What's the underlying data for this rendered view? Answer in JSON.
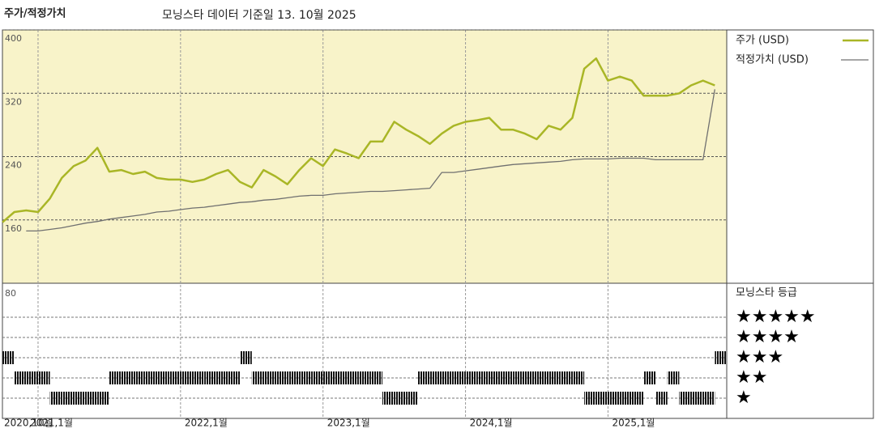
{
  "chart_data": [
    {
      "type": "line",
      "title": "주가/적정가치",
      "subtitle": "모닝스타 데이터 기준일 13. 10월 2025",
      "x": [
        "2020-10",
        "2020-11",
        "2020-12",
        "2021-01",
        "2021-02",
        "2021-03",
        "2021-04",
        "2021-05",
        "2021-06",
        "2021-07",
        "2021-08",
        "2021-09",
        "2021-10",
        "2021-11",
        "2021-12",
        "2022-01",
        "2022-02",
        "2022-03",
        "2022-04",
        "2022-05",
        "2022-06",
        "2022-07",
        "2022-08",
        "2022-09",
        "2022-10",
        "2022-11",
        "2022-12",
        "2023-01",
        "2023-02",
        "2023-03",
        "2023-04",
        "2023-05",
        "2023-06",
        "2023-07",
        "2023-08",
        "2023-09",
        "2023-10",
        "2023-11",
        "2023-12",
        "2024-01",
        "2024-02",
        "2024-03",
        "2024-04",
        "2024-05",
        "2024-06",
        "2024-07",
        "2024-08",
        "2024-09",
        "2024-10",
        "2024-11",
        "2024-12",
        "2025-01",
        "2025-02",
        "2025-03",
        "2025-04",
        "2025-05",
        "2025-06",
        "2025-07",
        "2025-08",
        "2025-09",
        "2025-10"
      ],
      "series": [
        {
          "name": "주가 (USD)",
          "color": "#a9b626",
          "values": [
            157,
            170,
            172,
            170,
            187,
            213,
            228,
            235,
            251,
            221,
            223,
            218,
            221,
            213,
            211,
            211,
            208,
            211,
            218,
            223,
            208,
            201,
            223,
            215,
            205,
            223,
            238,
            228,
            249,
            244,
            238,
            259,
            259,
            284,
            274,
            266,
            256,
            269,
            279,
            284,
            286,
            289,
            274,
            274,
            269,
            262,
            279,
            274,
            289,
            351,
            364,
            336,
            341,
            336,
            317,
            317,
            317,
            320,
            330,
            336,
            330
          ]
        },
        {
          "name": "적정가치 (USD)",
          "color": "#707070",
          "values": [
            null,
            null,
            146,
            146,
            148,
            150,
            153,
            156,
            158,
            161,
            163,
            165,
            167,
            170,
            171,
            173,
            175,
            176,
            178,
            180,
            182,
            183,
            185,
            186,
            188,
            190,
            191,
            191,
            193,
            194,
            195,
            196,
            196,
            197,
            198,
            199,
            200,
            220,
            220,
            222,
            224,
            226,
            228,
            230,
            231,
            232,
            233,
            234,
            236,
            237,
            237,
            237,
            238,
            238,
            238,
            236,
            236,
            236,
            236,
            236,
            325
          ]
        }
      ],
      "xlim": [
        "2020-10",
        "2025-11"
      ],
      "xticks": [
        {
          "value": "2020-10",
          "label": "2020,10월"
        },
        {
          "value": "2021-01",
          "label": "2021,1월"
        },
        {
          "value": "2022-01",
          "label": "2022,1월"
        },
        {
          "value": "2023-01",
          "label": "2023,1월"
        },
        {
          "value": "2024-01",
          "label": "2024,1월"
        },
        {
          "value": "2025-01",
          "label": "2025,1월"
        }
      ],
      "ylim": [
        80,
        400
      ],
      "yticks": [
        160,
        240,
        320,
        400
      ],
      "grid": true,
      "legend": "right"
    },
    {
      "type": "rating",
      "title": "모닝스타 등급",
      "corner_label": "80",
      "x": [
        "2020-10",
        "2020-11",
        "2020-12",
        "2021-01",
        "2021-02",
        "2021-03",
        "2021-04",
        "2021-05",
        "2021-06",
        "2021-07",
        "2021-08",
        "2021-09",
        "2021-10",
        "2021-11",
        "2021-12",
        "2022-01",
        "2022-02",
        "2022-03",
        "2022-04",
        "2022-05",
        "2022-06",
        "2022-07",
        "2022-08",
        "2022-09",
        "2022-10",
        "2022-11",
        "2022-12",
        "2023-01",
        "2023-02",
        "2023-03",
        "2023-04",
        "2023-05",
        "2023-06",
        "2023-07",
        "2023-08",
        "2023-09",
        "2023-10",
        "2023-11",
        "2023-12",
        "2024-01",
        "2024-02",
        "2024-03",
        "2024-04",
        "2024-05",
        "2024-06",
        "2024-07",
        "2024-08",
        "2024-09",
        "2024-10",
        "2024-11",
        "2024-12",
        "2025-01",
        "2025-02",
        "2025-03",
        "2025-04",
        "2025-05",
        "2025-06",
        "2025-07",
        "2025-08",
        "2025-09",
        "2025-10"
      ],
      "values": [
        3,
        2,
        2,
        2,
        1,
        1,
        1,
        1,
        1,
        2,
        2,
        2,
        2,
        2,
        2,
        2,
        2,
        2,
        2,
        2,
        3,
        2,
        2,
        2,
        2,
        2,
        2,
        2,
        2,
        2,
        2,
        2,
        1,
        1,
        1,
        2,
        2,
        2,
        2,
        2,
        2,
        2,
        2,
        2,
        2,
        2,
        2,
        2,
        2,
        1,
        1,
        1,
        1,
        1,
        2,
        1,
        2,
        1,
        1,
        1,
        3
      ],
      "levels": [
        {
          "value": 5,
          "label": "★★★★★"
        },
        {
          "value": 4,
          "label": "★★★★"
        },
        {
          "value": 3,
          "label": "★★★"
        },
        {
          "value": 2,
          "label": "★★"
        },
        {
          "value": 1,
          "label": "★"
        }
      ]
    }
  ]
}
